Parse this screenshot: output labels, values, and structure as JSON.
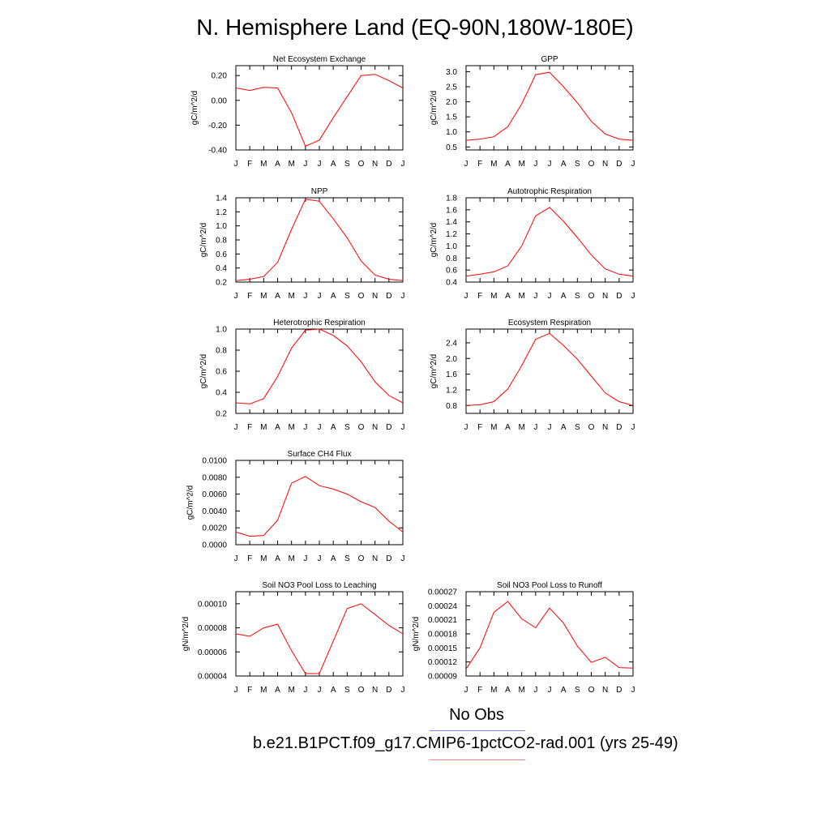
{
  "title": "N. Hemisphere Land (EQ-90N,180W-180E)",
  "legend": {
    "obs_label": "No Obs",
    "obs_color": "#8080ff",
    "case_label": "b.e21.B1PCT.f09_g17.CMIP6-1pctCO2-rad.001 (yrs 25-49)",
    "case_color": "#ff8080"
  },
  "line_color": "#ff0000",
  "chart_data": [
    {
      "type": "line",
      "title": "Net Ecosystem Exchange",
      "ylabel": "gC/m^2/d",
      "x": [
        "J",
        "F",
        "M",
        "A",
        "M",
        "J",
        "J",
        "A",
        "S",
        "O",
        "N",
        "D",
        "J"
      ],
      "ylim": [
        -0.4,
        0.28
      ],
      "yticks": [
        -0.4,
        -0.2,
        0.0,
        0.2
      ],
      "yticklabels": [
        "-0.40",
        "-0.20",
        "0.00",
        "0.20"
      ],
      "series": [
        {
          "values": [
            0.1,
            0.08,
            0.105,
            0.1,
            -0.1,
            -0.37,
            -0.32,
            -0.14,
            0.03,
            0.2,
            0.21,
            0.16,
            0.1
          ]
        }
      ]
    },
    {
      "type": "line",
      "title": "GPP",
      "ylabel": "gC/m^2/d",
      "x": [
        "J",
        "F",
        "M",
        "A",
        "M",
        "J",
        "J",
        "A",
        "S",
        "O",
        "N",
        "D",
        "J"
      ],
      "ylim": [
        0.4,
        3.2
      ],
      "yticks": [
        0.5,
        1.0,
        1.5,
        2.0,
        2.5,
        3.0
      ],
      "yticklabels": [
        "0.5",
        "1.0",
        "1.5",
        "2.0",
        "2.5",
        "3.0"
      ],
      "series": [
        {
          "values": [
            0.72,
            0.76,
            0.84,
            1.17,
            1.93,
            2.9,
            2.98,
            2.5,
            1.97,
            1.35,
            0.93,
            0.76,
            0.72
          ]
        }
      ]
    },
    {
      "type": "line",
      "title": "NPP",
      "ylabel": "gC/m^2/d",
      "x": [
        "J",
        "F",
        "M",
        "A",
        "M",
        "J",
        "J",
        "A",
        "S",
        "O",
        "N",
        "D",
        "J"
      ],
      "ylim": [
        0.2,
        1.4
      ],
      "yticks": [
        0.2,
        0.4,
        0.6,
        0.8,
        1.0,
        1.2,
        1.4
      ],
      "yticklabels": [
        "0.2",
        "0.4",
        "0.6",
        "0.8",
        "1.0",
        "1.2",
        "1.4"
      ],
      "series": [
        {
          "values": [
            0.22,
            0.24,
            0.28,
            0.48,
            0.95,
            1.38,
            1.35,
            1.1,
            0.83,
            0.5,
            0.3,
            0.24,
            0.22
          ]
        }
      ]
    },
    {
      "type": "line",
      "title": "Autotrophic Respiration",
      "ylabel": "gC/m^2/d",
      "x": [
        "J",
        "F",
        "M",
        "A",
        "M",
        "J",
        "J",
        "A",
        "S",
        "O",
        "N",
        "D",
        "J"
      ],
      "ylim": [
        0.4,
        1.8
      ],
      "yticks": [
        0.4,
        0.6,
        0.8,
        1.0,
        1.2,
        1.4,
        1.6,
        1.8
      ],
      "yticklabels": [
        "0.4",
        "0.6",
        "0.8",
        "1.0",
        "1.2",
        "1.4",
        "1.6",
        "1.8"
      ],
      "series": [
        {
          "values": [
            0.5,
            0.53,
            0.57,
            0.67,
            1.0,
            1.5,
            1.64,
            1.41,
            1.14,
            0.85,
            0.62,
            0.53,
            0.5
          ]
        }
      ]
    },
    {
      "type": "line",
      "title": "Heterotrophic Respiration",
      "ylabel": "gC/m^2/d",
      "x": [
        "J",
        "F",
        "M",
        "A",
        "M",
        "J",
        "J",
        "A",
        "S",
        "O",
        "N",
        "D",
        "J"
      ],
      "ylim": [
        0.2,
        1.0
      ],
      "yticks": [
        0.2,
        0.4,
        0.6,
        0.8,
        1.0
      ],
      "yticklabels": [
        "0.2",
        "0.4",
        "0.6",
        "0.8",
        "1.0"
      ],
      "series": [
        {
          "values": [
            0.3,
            0.29,
            0.34,
            0.55,
            0.82,
            0.99,
            1.0,
            0.94,
            0.84,
            0.69,
            0.5,
            0.37,
            0.3
          ]
        }
      ]
    },
    {
      "type": "line",
      "title": "Ecosystem Respiration",
      "ylabel": "gC/m^2/d",
      "x": [
        "J",
        "F",
        "M",
        "A",
        "M",
        "J",
        "J",
        "A",
        "S",
        "O",
        "N",
        "D",
        "J"
      ],
      "ylim": [
        0.6,
        2.75
      ],
      "yticks": [
        0.8,
        1.2,
        1.6,
        2.0,
        2.4
      ],
      "yticklabels": [
        "0.8",
        "1.2",
        "1.6",
        "2.0",
        "2.4"
      ],
      "series": [
        {
          "values": [
            0.8,
            0.82,
            0.9,
            1.22,
            1.82,
            2.49,
            2.64,
            2.33,
            1.98,
            1.55,
            1.12,
            0.9,
            0.8
          ]
        }
      ]
    },
    {
      "type": "line",
      "title": "Surface CH4 Flux",
      "ylabel": "gC/m^2/d",
      "x": [
        "J",
        "F",
        "M",
        "A",
        "M",
        "J",
        "J",
        "A",
        "S",
        "O",
        "N",
        "D",
        "J"
      ],
      "ylim": [
        0.0,
        0.01
      ],
      "yticks": [
        0.0,
        0.002,
        0.004,
        0.006,
        0.008,
        0.01
      ],
      "yticklabels": [
        "0.0000",
        "0.0020",
        "0.0040",
        "0.0060",
        "0.0080",
        "0.0100"
      ],
      "series": [
        {
          "values": [
            0.0015,
            0.001,
            0.0011,
            0.0029,
            0.0073,
            0.0081,
            0.007,
            0.0066,
            0.006,
            0.0051,
            0.0044,
            0.0028,
            0.0015
          ]
        }
      ]
    },
    {
      "type": "line",
      "title": "Soil NO3 Pool Loss to Leaching",
      "ylabel": "gN/m^2/d",
      "x": [
        "J",
        "F",
        "M",
        "A",
        "M",
        "J",
        "J",
        "A",
        "S",
        "O",
        "N",
        "D",
        "J"
      ],
      "ylim": [
        4e-05,
        0.00011
      ],
      "yticks": [
        4e-05,
        6e-05,
        8e-05,
        0.0001
      ],
      "yticklabels": [
        "0.00004",
        "0.00006",
        "0.00008",
        "0.00010"
      ],
      "series": [
        {
          "values": [
            7.5e-05,
            7.3e-05,
            8e-05,
            8.3e-05,
            6.1e-05,
            4.2e-05,
            4.2e-05,
            6.9e-05,
            9.6e-05,
            0.0001,
            9.1e-05,
            8.2e-05,
            7.5e-05
          ]
        }
      ]
    },
    {
      "type": "line",
      "title": "Soil NO3 Pool Loss to Runoff",
      "ylabel": "gN/m^2/d",
      "x": [
        "J",
        "F",
        "M",
        "A",
        "M",
        "J",
        "J",
        "A",
        "S",
        "O",
        "N",
        "D",
        "J"
      ],
      "ylim": [
        9e-05,
        0.00027
      ],
      "yticks": [
        9e-05,
        0.00012,
        0.00015,
        0.00018,
        0.00021,
        0.00024,
        0.00027
      ],
      "yticklabels": [
        "0.00009",
        "0.00012",
        "0.00015",
        "0.00018",
        "0.00021",
        "0.00024",
        "0.00027"
      ],
      "series": [
        {
          "values": [
            0.000105,
            0.00015,
            0.000226,
            0.000249,
            0.000212,
            0.000193,
            0.000235,
            0.000203,
            0.000154,
            0.000119,
            0.00013,
            0.000108,
            0.000107
          ]
        }
      ]
    }
  ]
}
